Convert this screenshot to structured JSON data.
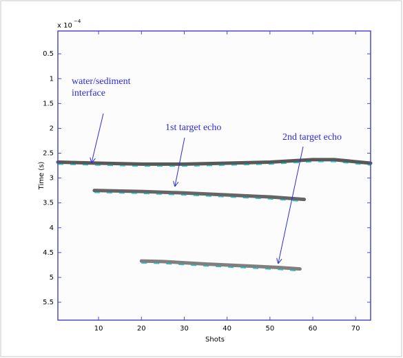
{
  "chart_data": {
    "type": "image",
    "x_label": "Shots",
    "y_label": "Time (s)",
    "y_offset_text": "x 10",
    "y_offset_power": "−4",
    "xlim": [
      0.5,
      73.5
    ],
    "ylim": [
      0.04,
      5.86
    ],
    "y_inverted": true,
    "xticks": [
      10,
      20,
      30,
      40,
      50,
      60,
      70
    ],
    "yticks": [
      0.5,
      1,
      1.5,
      2,
      2.5,
      3,
      3.5,
      4,
      4.5,
      5,
      5.5
    ],
    "axis_color": "#4a4ac8",
    "series": [
      {
        "color": "#222222",
        "x": [
          0.5,
          10,
          20,
          30,
          40,
          50,
          60,
          65,
          73.5
        ],
        "values": [
          2.68,
          2.7,
          2.72,
          2.72,
          2.7,
          2.68,
          2.63,
          2.63,
          2.7
        ]
      },
      {
        "color": "#333333",
        "x": [
          9,
          20,
          30,
          40,
          50,
          58
        ],
        "values": [
          3.25,
          3.27,
          3.3,
          3.34,
          3.38,
          3.43
        ]
      },
      {
        "color": "#555555",
        "x": [
          20,
          25,
          35,
          45,
          52,
          57
        ],
        "values": [
          4.67,
          4.68,
          4.73,
          4.77,
          4.8,
          4.83
        ]
      }
    ],
    "annotations": [
      {
        "lines": [
          "water/sediment",
          "interface"
        ],
        "color": "#2a2ae0"
      },
      {
        "lines": [
          "1st target echo"
        ],
        "color": "#2a2ae0"
      },
      {
        "lines": [
          "2nd target echo"
        ],
        "color": "#2a2ae0"
      }
    ]
  }
}
